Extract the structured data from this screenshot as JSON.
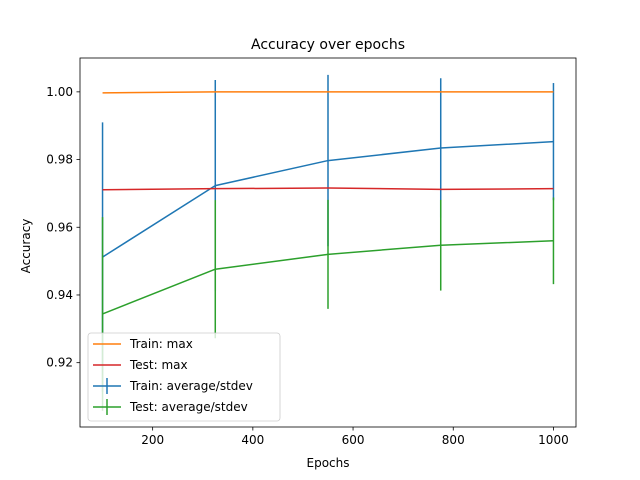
{
  "chart_data": {
    "type": "line",
    "title": "Accuracy over epochs",
    "xlabel": "Epochs",
    "ylabel": "Accuracy",
    "xlim": [
      55,
      1045
    ],
    "ylim": [
      0.901,
      1.01
    ],
    "xticks": [
      200,
      400,
      600,
      800,
      1000
    ],
    "xtick_labels": [
      "200",
      "400",
      "600",
      "800",
      "1000"
    ],
    "yticks": [
      0.92,
      0.94,
      0.96,
      0.98,
      1.0
    ],
    "ytick_labels": [
      "0.92",
      "0.94",
      "0.96",
      "0.98",
      "1.00"
    ],
    "grid": false,
    "legend_position": "lower left",
    "x": [
      100,
      325,
      550,
      775,
      1000
    ],
    "series": [
      {
        "name": "Train: max",
        "color": "#ff7f0e",
        "values": [
          0.9997,
          1.0,
          1.0,
          1.0,
          1.0
        ],
        "errorbars": false
      },
      {
        "name": "Test: max",
        "color": "#d62728",
        "values": [
          0.9711,
          0.9714,
          0.9716,
          0.9712,
          0.9714
        ],
        "errorbars": false
      },
      {
        "name": "Train: average/stdev",
        "color": "#1f77b4",
        "values": [
          0.9512,
          0.9723,
          0.9797,
          0.9834,
          0.9853
        ],
        "stdev": [
          0.0398,
          0.0312,
          0.0253,
          0.0206,
          0.0173
        ],
        "errorbars": true
      },
      {
        "name": "Test: average/stdev",
        "color": "#2ca02c",
        "values": [
          0.9344,
          0.9476,
          0.952,
          0.9547,
          0.956
        ],
        "stdev": [
          0.0286,
          0.0204,
          0.0161,
          0.0134,
          0.0128
        ],
        "errorbars": true
      }
    ],
    "legend_order": [
      0,
      1,
      2,
      3
    ]
  }
}
